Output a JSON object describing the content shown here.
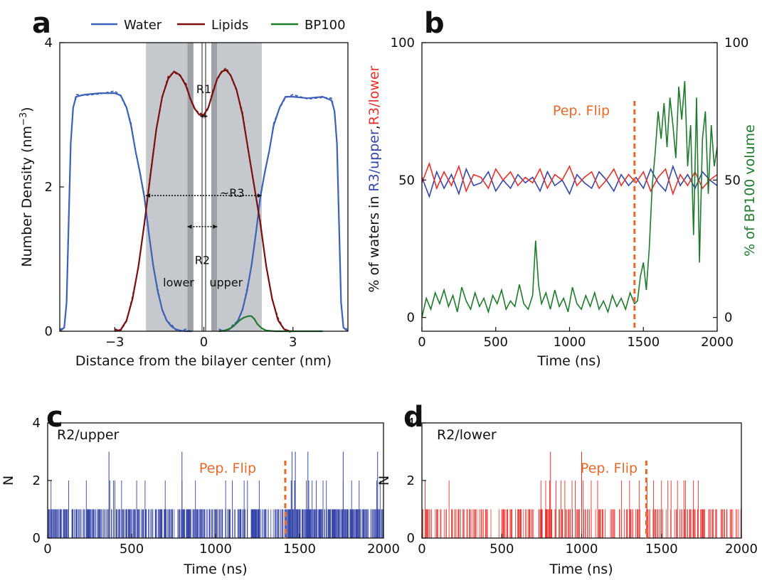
{
  "colors": {
    "water": "#3d62b8",
    "lipids": "#7b1010",
    "bp100": "#1f7a2e",
    "upper": "#3645a8",
    "lower": "#e8302c",
    "flip": "#e86a2a",
    "shade": "#c5c8cc",
    "shade_dark": "#9ea2a6"
  },
  "chart_data": [
    {
      "panel": "a",
      "type": "line",
      "xlabel": "Distance from the bilayer center (nm)",
      "ylabel": "Number Density (nm",
      "ylabel_sup": "−3",
      "ylabel_close": ")",
      "xlim": [
        -4.85,
        4.85
      ],
      "ylim": [
        0,
        4
      ],
      "xticks": [
        {
          "v": -3,
          "t": "−3"
        },
        {
          "v": 0,
          "t": "0"
        },
        {
          "v": 3,
          "t": "3"
        }
      ],
      "yticks": [
        {
          "v": 0,
          "t": "0"
        },
        {
          "v": 2,
          "t": "2"
        },
        {
          "v": 4,
          "t": "4"
        }
      ],
      "legend": [
        "Water",
        "Lipids",
        "BP100"
      ],
      "shaded_regions": [
        [
          -1.95,
          -0.55
        ],
        [
          -0.55,
          -0.35
        ],
        [
          0.25,
          0.45
        ],
        [
          0.45,
          1.95
        ]
      ],
      "center_lines": [
        -0.06,
        0.06
      ],
      "annotations": [
        {
          "text": "R1",
          "x": 0,
          "y": 3.3,
          "arrow": [
            -0.12,
            0.12
          ],
          "ay": 2.98
        },
        {
          "text": "~R3",
          "x": 0.95,
          "y": 1.86,
          "arrow": [
            -1.95,
            1.95
          ],
          "ay": 1.88
        },
        {
          "text": "R2",
          "x": -0.05,
          "y": 0.93,
          "arrow": [
            -0.55,
            0.45
          ],
          "ay": 1.45
        },
        {
          "text": "lower",
          "x": -0.85,
          "y": 0.62
        },
        {
          "text": "upper",
          "x": 0.75,
          "y": 0.62
        }
      ],
      "series": [
        {
          "name": "Water",
          "x": [
            -4.85,
            -4.7,
            -4.62,
            -4.55,
            -4.48,
            -4.4,
            -4.3,
            -4.0,
            -3.5,
            -3.0,
            -2.8,
            -2.6,
            -2.45,
            -2.3,
            -2.15,
            -2.0,
            -1.85,
            -1.7,
            -1.55,
            -1.4,
            -1.25,
            -1.1,
            -0.95,
            -0.8,
            -0.6,
            -0.4
          ],
          "y": [
            0.0,
            0.05,
            0.4,
            1.5,
            2.6,
            3.1,
            3.25,
            3.28,
            3.3,
            3.3,
            3.27,
            3.1,
            2.85,
            2.5,
            2.2,
            1.85,
            1.35,
            0.9,
            0.55,
            0.3,
            0.15,
            0.07,
            0.03,
            0.01,
            0.0,
            0.0
          ]
        },
        {
          "name": "Water",
          "x": [
            0.5,
            0.7,
            0.85,
            1.0,
            1.15,
            1.3,
            1.45,
            1.6,
            1.75,
            1.9,
            2.05,
            2.2,
            2.35,
            2.55,
            2.75,
            3.0,
            3.5,
            4.0,
            4.3,
            4.4,
            4.48,
            4.55,
            4.62,
            4.7,
            4.85
          ],
          "y": [
            0.0,
            0.01,
            0.03,
            0.07,
            0.15,
            0.3,
            0.55,
            0.9,
            1.35,
            1.85,
            2.2,
            2.5,
            2.85,
            3.1,
            3.25,
            3.25,
            3.23,
            3.25,
            3.2,
            3.05,
            2.6,
            1.5,
            0.4,
            0.05,
            0.0
          ]
        },
        {
          "name": "Lipids",
          "x": [
            -3.0,
            -2.8,
            -2.6,
            -2.4,
            -2.2,
            -2.0,
            -1.8,
            -1.6,
            -1.4,
            -1.2,
            -1.0,
            -0.8,
            -0.6,
            -0.45,
            -0.3,
            -0.15,
            0.0,
            0.15,
            0.3,
            0.45,
            0.6,
            0.75,
            0.9,
            1.1,
            1.3,
            1.5,
            1.7,
            1.9,
            2.1,
            2.3,
            2.5,
            2.7,
            2.9,
            3.0
          ],
          "y": [
            0.0,
            0.02,
            0.15,
            0.45,
            0.9,
            1.5,
            2.15,
            2.8,
            3.25,
            3.5,
            3.6,
            3.55,
            3.4,
            3.22,
            3.08,
            3.0,
            3.0,
            3.1,
            3.3,
            3.5,
            3.6,
            3.62,
            3.55,
            3.35,
            3.0,
            2.5,
            2.0,
            1.5,
            0.9,
            0.45,
            0.15,
            0.03,
            0.0,
            0.0
          ]
        },
        {
          "name": "BP100",
          "x": [
            0.5,
            0.7,
            0.9,
            1.05,
            1.2,
            1.35,
            1.5,
            1.6,
            1.7,
            1.8,
            1.95,
            2.1,
            2.4,
            3.0,
            4.0
          ],
          "y": [
            0.0,
            0.01,
            0.04,
            0.09,
            0.15,
            0.19,
            0.21,
            0.21,
            0.17,
            0.1,
            0.04,
            0.01,
            0.0,
            0.0,
            0.0
          ]
        }
      ]
    },
    {
      "panel": "b",
      "type": "line",
      "xlabel": "Time (ns)",
      "ylabel_parts": [
        "% of waters in ",
        "R3/upper",
        ",",
        "R3/lower"
      ],
      "ylabel_right": "% of BP100 volume",
      "xlim": [
        0,
        2000
      ],
      "ylim": [
        -5,
        100
      ],
      "xticks": [
        0,
        500,
        1000,
        1500,
        2000
      ],
      "yticks": [
        0,
        50,
        100
      ],
      "flip_time": 1440,
      "flip_label": "Pep. Flip",
      "series": [
        {
          "name": "R3/upper",
          "x": [
            0,
            50,
            100,
            150,
            200,
            250,
            300,
            350,
            400,
            450,
            500,
            550,
            600,
            650,
            700,
            750,
            800,
            850,
            900,
            950,
            1000,
            1050,
            1100,
            1150,
            1200,
            1250,
            1300,
            1350,
            1400,
            1450,
            1500,
            1550,
            1600,
            1650,
            1700,
            1750,
            1800,
            1850,
            1900,
            1950,
            2000
          ],
          "y": [
            51,
            44,
            53,
            47,
            52,
            45,
            54,
            48,
            49,
            53,
            46,
            50,
            47,
            52,
            49,
            51,
            46,
            53,
            48,
            50,
            45,
            52,
            49,
            47,
            53,
            50,
            46,
            52,
            48,
            51,
            47,
            54,
            49,
            46,
            55,
            48,
            52,
            47,
            53,
            50,
            48
          ]
        },
        {
          "name": "R3/lower",
          "x": [
            0,
            50,
            100,
            150,
            200,
            250,
            300,
            350,
            400,
            450,
            500,
            550,
            600,
            650,
            700,
            750,
            800,
            850,
            900,
            950,
            1000,
            1050,
            1100,
            1150,
            1200,
            1250,
            1300,
            1350,
            1400,
            1450,
            1500,
            1550,
            1600,
            1650,
            1700,
            1750,
            1800,
            1850,
            1900,
            1950,
            2000
          ],
          "y": [
            49,
            56,
            47,
            53,
            48,
            55,
            46,
            52,
            51,
            47,
            54,
            50,
            53,
            48,
            51,
            49,
            54,
            47,
            52,
            50,
            55,
            48,
            51,
            53,
            47,
            50,
            54,
            48,
            52,
            49,
            53,
            46,
            51,
            54,
            45,
            52,
            48,
            53,
            47,
            50,
            52
          ]
        },
        {
          "name": "BP100",
          "axis": "right",
          "x": [
            0,
            30,
            60,
            90,
            120,
            150,
            180,
            210,
            240,
            270,
            300,
            330,
            360,
            390,
            420,
            450,
            480,
            510,
            540,
            570,
            600,
            630,
            660,
            690,
            720,
            750,
            770,
            790,
            810,
            840,
            870,
            900,
            930,
            960,
            990,
            1020,
            1050,
            1080,
            1110,
            1140,
            1170,
            1200,
            1230,
            1260,
            1290,
            1320,
            1350,
            1380,
            1410,
            1440,
            1460,
            1480,
            1500,
            1520,
            1540,
            1560,
            1580,
            1600,
            1620,
            1640,
            1660,
            1680,
            1700,
            1720,
            1740,
            1760,
            1780,
            1800,
            1820,
            1840,
            1860,
            1880,
            1900,
            1920,
            1940,
            1960,
            1980,
            2000
          ],
          "y": [
            0,
            7,
            3,
            9,
            5,
            10,
            4,
            8,
            2,
            11,
            6,
            3,
            9,
            4,
            7,
            2,
            8,
            5,
            10,
            3,
            6,
            4,
            12,
            5,
            3,
            8,
            28,
            12,
            5,
            9,
            3,
            10,
            4,
            7,
            2,
            11,
            5,
            3,
            8,
            4,
            9,
            3,
            6,
            2,
            8,
            4,
            7,
            3,
            9,
            5,
            6,
            15,
            20,
            10,
            25,
            48,
            60,
            75,
            65,
            78,
            62,
            80,
            70,
            58,
            84,
            72,
            86,
            55,
            70,
            30,
            80,
            20,
            65,
            75,
            45,
            70,
            55,
            62
          ]
        }
      ]
    },
    {
      "panel": "c",
      "type": "bar",
      "title": "R2/upper",
      "xlabel": "Time (ns)",
      "ylabel": "N",
      "xlim": [
        0,
        2000
      ],
      "ylim": [
        0,
        4
      ],
      "xticks": [
        0,
        500,
        1000,
        1500,
        2000
      ],
      "yticks": [
        0,
        2,
        4
      ],
      "flip_time": 1415,
      "flip_label": "Pep. Flip",
      "spikes_2": [
        20,
        125,
        230,
        370,
        392,
        400,
        440,
        530,
        580,
        700,
        800,
        880,
        1060,
        1100,
        1170,
        1190,
        1260,
        1450,
        1455,
        1470,
        1475,
        1540,
        1555,
        1575,
        1600,
        1640,
        1660,
        1760,
        1810,
        1855,
        1960,
        1980
      ],
      "spikes_3": [
        365,
        800,
        1455,
        1475,
        1550,
        1760,
        1965
      ]
    },
    {
      "panel": "d",
      "type": "bar",
      "title": "R2/lower",
      "xlabel": "Time (ns)",
      "ylabel": "N",
      "xlim": [
        0,
        2000
      ],
      "ylim": [
        0,
        4
      ],
      "xticks": [
        0,
        500,
        1000,
        1500,
        2000
      ],
      "yticks": [
        0,
        2,
        4
      ],
      "flip_time": 1405,
      "flip_label": "Pep. Flip",
      "spikes_2": [
        20,
        170,
        745,
        775,
        800,
        840,
        870,
        895,
        940,
        960,
        1000,
        1010,
        1060,
        1100,
        1250,
        1300,
        1360,
        1410,
        1450,
        1500,
        1540,
        1560,
        1600,
        1640,
        1650,
        1700,
        1730
      ],
      "spikes_3": [
        805,
        1000
      ]
    }
  ]
}
